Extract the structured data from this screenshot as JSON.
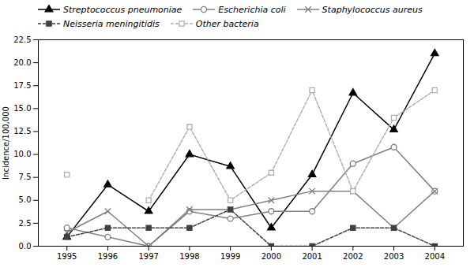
{
  "chart_data": {
    "type": "line",
    "x": [
      1995,
      1996,
      1997,
      1998,
      1999,
      2000,
      2001,
      2002,
      2003,
      2004
    ],
    "xlim": [
      1994.3,
      2004.7
    ],
    "xticks": [
      1995,
      1996,
      1997,
      1998,
      1999,
      2000,
      2001,
      2002,
      2003,
      2004
    ],
    "ylim": [
      0,
      22.5
    ],
    "yticks": [
      {
        "value": 0,
        "label": "0.0"
      },
      2.5,
      {
        "value": 5,
        "label": "5.0"
      },
      7.5,
      {
        "value": 10,
        "label": "10.0"
      },
      12.5,
      {
        "value": 15,
        "label": "15.0"
      },
      17.5,
      {
        "value": 20,
        "label": "20.0"
      },
      22.5
    ],
    "ylabel": "Incidence/100,000",
    "grid": false,
    "legend": "upper left",
    "series": [
      {
        "name": "Streptococcus pneumoniae",
        "color": "#000000",
        "marker": "triangle",
        "line_style": "solid",
        "values": [
          1.0,
          6.7,
          3.8,
          10.0,
          8.7,
          2.0,
          7.8,
          16.7,
          12.7,
          21.0
        ]
      },
      {
        "name": "Escherichia coli",
        "color": "#808080",
        "marker": "circle-open",
        "line_style": "solid",
        "values": [
          2.0,
          1.0,
          0.0,
          3.8,
          3.0,
          3.8,
          3.8,
          9.0,
          10.8,
          6.0
        ]
      },
      {
        "name": "Staphylococcus aureus",
        "color": "#808080",
        "marker": "x",
        "line_style": "solid",
        "values": [
          1.5,
          3.8,
          0.0,
          4.0,
          4.0,
          5.0,
          6.0,
          6.0,
          2.0,
          6.0
        ]
      },
      {
        "name": "Neisseria meningitidis",
        "color": "#404040",
        "marker": "square",
        "line_style": "dashed",
        "values": [
          1.0,
          2.0,
          2.0,
          2.0,
          4.0,
          0.0,
          0.0,
          2.0,
          2.0,
          0.0
        ]
      },
      {
        "name": "Other bacteria",
        "color": "#b0b0b0",
        "marker": "square-open",
        "line_style": "dashed",
        "values": [
          7.8,
          null,
          5.0,
          13.0,
          5.0,
          8.0,
          17.0,
          6.0,
          14.0,
          17.0
        ]
      }
    ]
  }
}
